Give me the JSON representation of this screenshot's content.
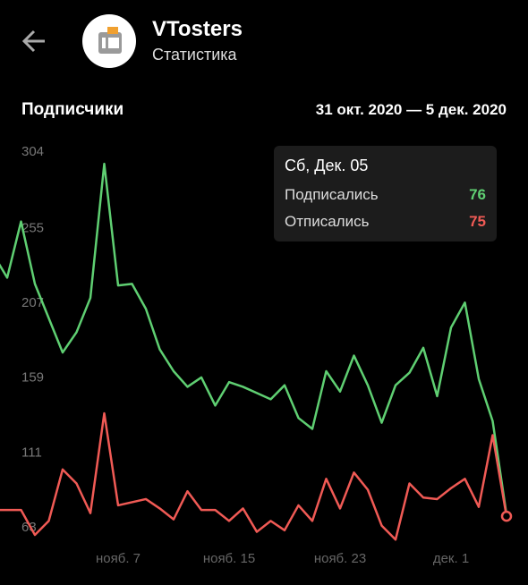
{
  "header": {
    "title": "VTosters",
    "subtitle": "Статистика"
  },
  "section": {
    "title": "Подписчики",
    "period": "31 окт. 2020 — 5 дек. 2020"
  },
  "tooltip": {
    "title": "Сб, Дек. 05"
  },
  "chart_data": {
    "type": "line",
    "categories": [
      null,
      null,
      null,
      null,
      null,
      null,
      null,
      null,
      null,
      "нояб. 7",
      null,
      null,
      null,
      null,
      null,
      null,
      null,
      "нояб. 15",
      null,
      null,
      null,
      null,
      null,
      null,
      null,
      "нояб. 23",
      null,
      null,
      null,
      null,
      null,
      null,
      null,
      "дек. 1",
      null,
      null,
      null,
      null
    ],
    "series": [
      {
        "name": "Подписались",
        "color": "#5fcf72",
        "values": [
          243,
          228,
          264,
          224,
          202,
          180,
          193,
          215,
          301,
          223,
          224,
          208,
          182,
          168,
          158,
          164,
          146,
          161,
          158,
          154,
          150,
          159,
          138,
          131,
          168,
          155,
          178,
          159,
          135,
          159,
          167,
          183,
          152,
          196,
          212,
          163,
          136,
          76
        ]
      },
      {
        "name": "Отписались",
        "color": "#f05a55",
        "values": [
          79,
          79,
          79,
          63,
          72,
          105,
          96,
          77,
          141,
          82,
          84,
          86,
          80,
          73,
          91,
          79,
          79,
          72,
          80,
          65,
          72,
          66,
          82,
          72,
          99,
          80,
          103,
          92,
          69,
          60,
          96,
          87,
          86,
          93,
          99,
          81,
          127,
          75
        ]
      }
    ],
    "ylim": [
      55,
      320
    ],
    "yticks": [
      63,
      111,
      159,
      207,
      255,
      304
    ]
  }
}
